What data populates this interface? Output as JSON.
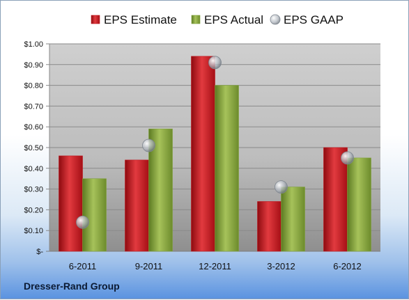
{
  "chart_data": {
    "type": "bar",
    "categories": [
      "6-2011",
      "9-2011",
      "12-2011",
      "3-2012",
      "6-2012"
    ],
    "series": [
      {
        "name": "EPS Estimate",
        "kind": "bar",
        "color": "#c0151d",
        "values": [
          0.46,
          0.44,
          0.94,
          0.24,
          0.5
        ]
      },
      {
        "name": "EPS Actual",
        "kind": "bar",
        "color": "#7fa23a",
        "values": [
          0.35,
          0.59,
          0.8,
          0.31,
          0.45
        ]
      },
      {
        "name": "EPS GAAP",
        "kind": "marker",
        "color": "#9aa3ad",
        "values": [
          0.14,
          0.51,
          0.91,
          0.31,
          0.45
        ]
      }
    ],
    "yticks": [
      "$-",
      "$0.10",
      "$0.20",
      "$0.30",
      "$0.40",
      "$0.50",
      "$0.60",
      "$0.70",
      "$0.80",
      "$0.90",
      "$1.00"
    ],
    "ylim": [
      0,
      1.0
    ],
    "grid": true,
    "legend_position": "top"
  },
  "footer": {
    "company": "Dresser-Rand Group"
  }
}
